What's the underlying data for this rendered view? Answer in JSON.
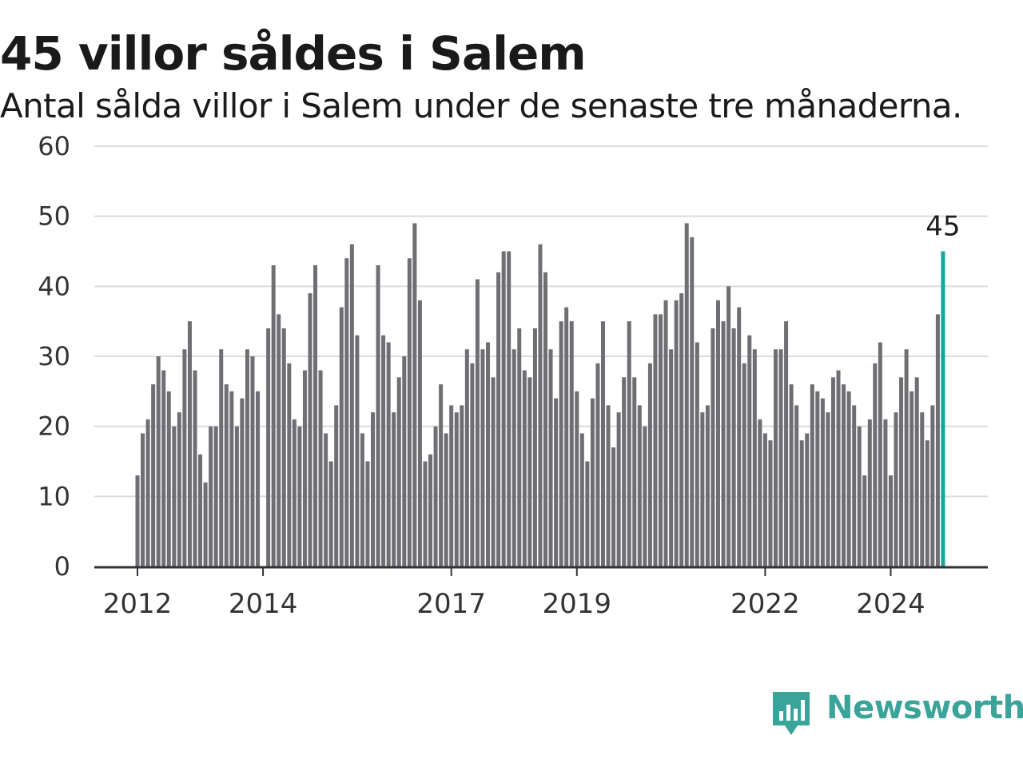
{
  "title": "45 villor såldes i Salem",
  "subtitle": "Antal sålda villor i Salem under de senaste tre månaderna.",
  "brand": {
    "name": "Newsworthy",
    "icon": "newsworthy-logo-icon",
    "color": "#3aa39a"
  },
  "colors": {
    "bar": "#6e6e73",
    "highlight": "#1aa59a",
    "grid": "#dcdcdc",
    "axis": "#333333"
  },
  "chart_data": {
    "type": "bar",
    "ylim": [
      0,
      60
    ],
    "yticks": [
      0,
      10,
      20,
      30,
      40,
      50,
      60
    ],
    "xtick_labels": [
      "2012",
      "2014",
      "2017",
      "2019",
      "2022",
      "2024"
    ],
    "grid": true,
    "legend": "none",
    "x_start": "2012-01",
    "highlight_last": true,
    "last_label": "45",
    "values": [
      13,
      19,
      21,
      26,
      30,
      28,
      25,
      20,
      22,
      31,
      35,
      28,
      16,
      12,
      20,
      20,
      31,
      26,
      25,
      20,
      24,
      31,
      30,
      25,
      0,
      34,
      43,
      36,
      34,
      29,
      21,
      20,
      28,
      39,
      43,
      28,
      19,
      15,
      23,
      37,
      44,
      46,
      33,
      19,
      15,
      22,
      43,
      33,
      32,
      22,
      27,
      30,
      44,
      49,
      38,
      15,
      16,
      20,
      26,
      19,
      23,
      22,
      23,
      31,
      29,
      41,
      31,
      32,
      27,
      42,
      45,
      45,
      31,
      34,
      28,
      27,
      34,
      46,
      42,
      31,
      24,
      35,
      37,
      35,
      25,
      19,
      15,
      24,
      29,
      35,
      23,
      17,
      22,
      27,
      35,
      27,
      23,
      20,
      29,
      36,
      36,
      38,
      31,
      38,
      39,
      49,
      47,
      32,
      22,
      23,
      34,
      38,
      35,
      40,
      34,
      37,
      29,
      33,
      31,
      21,
      19,
      18,
      31,
      31,
      35,
      26,
      23,
      18,
      19,
      26,
      25,
      24,
      22,
      27,
      28,
      26,
      25,
      23,
      20,
      13,
      21,
      29,
      32,
      21,
      13,
      22,
      27,
      31,
      25,
      27,
      22,
      18,
      23,
      36,
      45
    ]
  }
}
